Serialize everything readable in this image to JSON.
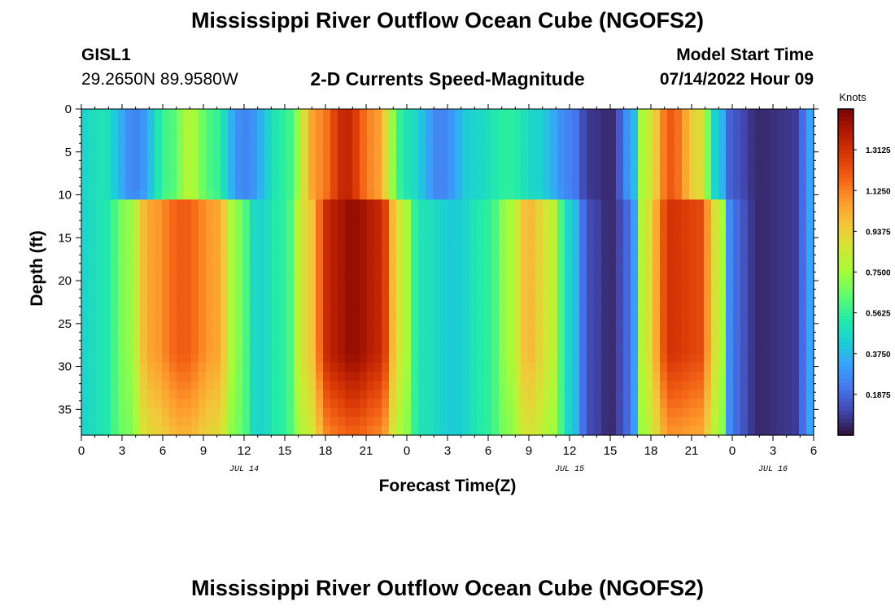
{
  "header": {
    "title": "Mississippi River Outflow Ocean Cube (NGOFS2)",
    "station_id": "GISL1",
    "station_coords": "29.2650N  89.9580W",
    "subtitle": "2-D Currents Speed-Magnitude",
    "model_start_label": "Model Start Time",
    "model_start_value": "07/14/2022 Hour 09"
  },
  "footer": {
    "title": "Mississippi River Outflow Ocean Cube (NGOFS2)"
  },
  "chart_data": {
    "type": "heatmap",
    "xlabel": "Forecast Time(Z)",
    "ylabel": "Depth (ft)",
    "xlim": [
      0,
      54
    ],
    "ylim": [
      38,
      0
    ],
    "x_ticks": [
      {
        "x": 0,
        "label": "0"
      },
      {
        "x": 3,
        "label": "3"
      },
      {
        "x": 6,
        "label": "6"
      },
      {
        "x": 9,
        "label": "9"
      },
      {
        "x": 12,
        "label": "12"
      },
      {
        "x": 15,
        "label": "15"
      },
      {
        "x": 18,
        "label": "18"
      },
      {
        "x": 21,
        "label": "21"
      },
      {
        "x": 24,
        "label": "0"
      },
      {
        "x": 27,
        "label": "3"
      },
      {
        "x": 30,
        "label": "6"
      },
      {
        "x": 33,
        "label": "9"
      },
      {
        "x": 36,
        "label": "12"
      },
      {
        "x": 39,
        "label": "15"
      },
      {
        "x": 42,
        "label": "18"
      },
      {
        "x": 45,
        "label": "21"
      },
      {
        "x": 48,
        "label": "0"
      },
      {
        "x": 51,
        "label": "3"
      },
      {
        "x": 54,
        "label": "6"
      }
    ],
    "date_labels": [
      {
        "x": 12,
        "label": "JUL 14"
      },
      {
        "x": 36,
        "label": "JUL 15"
      },
      {
        "x": 51,
        "label": "JUL 16"
      }
    ],
    "y_ticks": [
      0,
      5,
      10,
      15,
      20,
      25,
      30,
      35
    ],
    "colorbar": {
      "label": "Knots",
      "min": 0,
      "max": 1.5,
      "ticks": [
        0.1875,
        0.375,
        0.5625,
        0.75,
        0.9375,
        1.125,
        1.3125
      ],
      "tick_labels": [
        "0.1875",
        "0.3750",
        "0.5625",
        "0.7500",
        "0.9375",
        "1.1250",
        "1.3125"
      ]
    },
    "surface_layer": {
      "depth_range": [
        0,
        10
      ],
      "values": [
        [
          0,
          0.45
        ],
        [
          1.5,
          0.5
        ],
        [
          4,
          0.25
        ],
        [
          6.5,
          0.6
        ],
        [
          8,
          0.78
        ],
        [
          9.5,
          0.6
        ],
        [
          12,
          0.25
        ],
        [
          15,
          0.55
        ],
        [
          17.5,
          1.1
        ],
        [
          19.5,
          1.35
        ],
        [
          21.5,
          1.1
        ],
        [
          24,
          0.5
        ],
        [
          26.5,
          0.25
        ],
        [
          29,
          0.45
        ],
        [
          31.5,
          0.55
        ],
        [
          33.5,
          0.45
        ],
        [
          36,
          0.25
        ],
        [
          37.5,
          0.08
        ],
        [
          39,
          0.05
        ],
        [
          40.5,
          0.3
        ],
        [
          41.5,
          0.8
        ],
        [
          43.5,
          1.2
        ],
        [
          45.5,
          0.9
        ],
        [
          47,
          0.4
        ],
        [
          48,
          0.15
        ],
        [
          50,
          0.05
        ],
        [
          52.5,
          0.08
        ],
        [
          54,
          0.35
        ]
      ]
    },
    "deep_layer": {
      "depth_range": [
        11,
        38
      ],
      "values": [
        [
          0,
          0.45
        ],
        [
          1.5,
          0.5
        ],
        [
          3.5,
          0.72
        ],
        [
          5,
          1.05
        ],
        [
          7.5,
          1.2
        ],
        [
          10,
          1.05
        ],
        [
          11.5,
          0.7
        ],
        [
          13,
          0.45
        ],
        [
          15,
          0.55
        ],
        [
          16.5,
          0.9
        ],
        [
          18.5,
          1.38
        ],
        [
          20,
          1.45
        ],
        [
          22,
          1.35
        ],
        [
          23.5,
          0.85
        ],
        [
          25,
          0.5
        ],
        [
          27.5,
          0.42
        ],
        [
          30,
          0.55
        ],
        [
          31.5,
          0.75
        ],
        [
          33,
          1.0
        ],
        [
          34.5,
          0.85
        ],
        [
          36,
          0.45
        ],
        [
          37.5,
          0.12
        ],
        [
          39,
          0.05
        ],
        [
          40.5,
          0.2
        ],
        [
          41.5,
          0.85
        ],
        [
          43.5,
          1.3
        ],
        [
          45.5,
          1.25
        ],
        [
          47,
          0.85
        ],
        [
          48,
          0.2
        ],
        [
          50,
          0.05
        ],
        [
          52.5,
          0.08
        ],
        [
          54,
          0.35
        ]
      ]
    }
  },
  "colors": {
    "colormap": [
      "#30123b",
      "#4145ab",
      "#4675ed",
      "#39a2fc",
      "#1bcfd4",
      "#24eca6",
      "#61fc6c",
      "#a4fc3b",
      "#d1e834",
      "#f3c63a",
      "#fe9b2d",
      "#f36315",
      "#d93806",
      "#b11901",
      "#7a0402"
    ]
  }
}
